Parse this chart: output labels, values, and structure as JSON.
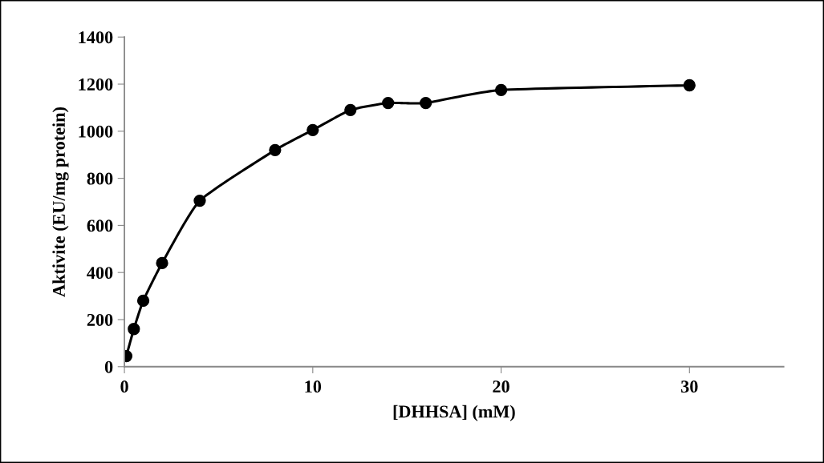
{
  "chart_data": {
    "type": "line",
    "xlabel": "[DHHSA] (mM)",
    "ylabel": "Aktivite (EU/mg protein)",
    "x": [
      0.1,
      0.5,
      1,
      2,
      4,
      8,
      10,
      12,
      14,
      16,
      20,
      30
    ],
    "series": [
      {
        "color": "#000000",
        "values": [
          45,
          160,
          280,
          440,
          705,
          920,
          1005,
          1090,
          1120,
          1120,
          1175,
          1195
        ]
      }
    ],
    "xlim": [
      0,
      35
    ],
    "xticks": [
      0,
      10,
      20,
      30
    ],
    "ylim": [
      0,
      1400
    ],
    "yticks": [
      0,
      200,
      400,
      600,
      800,
      1000,
      1200,
      1400
    ],
    "grid": false,
    "legend": false,
    "marker": "circle",
    "line_style": "solid"
  }
}
